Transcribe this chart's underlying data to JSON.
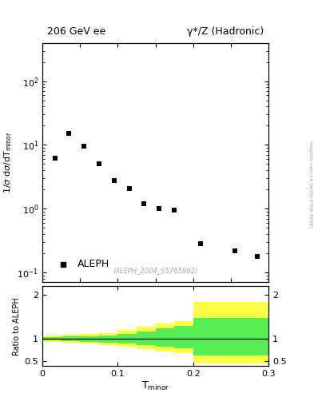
{
  "title_left": "206 GeV ee",
  "title_right": "γ*/Z (Hadronic)",
  "ylabel_main": "1/σ dσ/dT_minor",
  "xlabel": "T_minor",
  "annotation": "(ALEPH_2004_S5765862)",
  "legend_label": "ALEPH",
  "watermark": "mcplots.cern.ch [arXiv:1306.3436]",
  "data_x": [
    0.01667,
    0.035,
    0.055,
    0.075,
    0.095,
    0.115,
    0.135,
    0.155,
    0.175,
    0.21,
    0.255,
    0.285
  ],
  "data_y": [
    6.2,
    15.0,
    9.5,
    5.0,
    2.8,
    2.1,
    1.2,
    1.0,
    0.95,
    0.28,
    0.22,
    0.18
  ],
  "ratio_edges": [
    0.0,
    0.025,
    0.05,
    0.075,
    0.1,
    0.125,
    0.15,
    0.175,
    0.2,
    0.25,
    0.3
  ],
  "ratio_yellow_lo": [
    0.93,
    0.91,
    0.89,
    0.86,
    0.82,
    0.77,
    0.72,
    0.67,
    0.43,
    0.43,
    0.43
  ],
  "ratio_yellow_hi": [
    1.07,
    1.09,
    1.11,
    1.14,
    1.2,
    1.28,
    1.35,
    1.4,
    1.85,
    1.85,
    1.85
  ],
  "ratio_green_lo": [
    0.96,
    0.95,
    0.94,
    0.92,
    0.9,
    0.86,
    0.82,
    0.78,
    0.62,
    0.62,
    0.62
  ],
  "ratio_green_hi": [
    1.04,
    1.05,
    1.06,
    1.08,
    1.11,
    1.17,
    1.24,
    1.3,
    1.48,
    1.48,
    1.48
  ],
  "ylim_main": [
    0.07,
    400
  ],
  "xlim": [
    0.0,
    0.3
  ],
  "ratio_ylim": [
    0.38,
    2.2
  ],
  "ratio_yticks": [
    0.5,
    1.0,
    2.0
  ],
  "ratio_ytick_labels": [
    "0.5",
    "1",
    "2"
  ],
  "color_yellow": "#ffff44",
  "color_green": "#55ee55",
  "color_data": "#000000",
  "color_line": "#000000",
  "bg_color": "#ffffff"
}
